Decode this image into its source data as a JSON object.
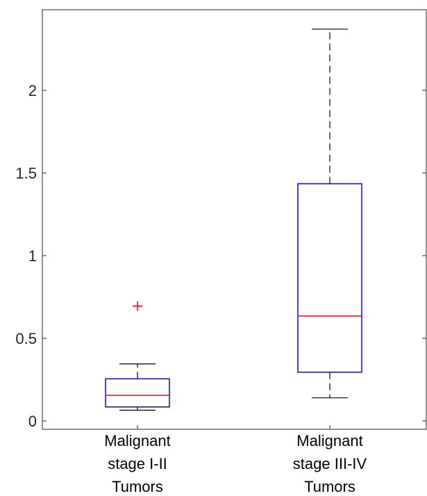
{
  "chart_data": {
    "type": "box",
    "title": "",
    "xlabel": "",
    "ylabel": "",
    "ylim": [
      -0.05,
      2.5
    ],
    "yticks": [
      0,
      0.5,
      1,
      1.5,
      2
    ],
    "ytick_labels": [
      "0",
      "0.5",
      "1",
      "1.5",
      "2"
    ],
    "grid": false,
    "categories": [
      [
        "Malignant",
        "stage I-II",
        "Tumors"
      ],
      [
        "Malignant",
        "stage III-IV",
        "Tumors"
      ]
    ],
    "boxes": [
      {
        "whisker_low": 0.065,
        "q1": 0.085,
        "median": 0.155,
        "q3": 0.255,
        "whisker_high": 0.345,
        "outliers": [
          0.695
        ]
      },
      {
        "whisker_low": 0.14,
        "q1": 0.295,
        "median": 0.635,
        "q3": 1.435,
        "whisker_high": 2.37,
        "outliers": []
      }
    ],
    "colors": {
      "box": "#0000ff",
      "median": "#ff0000",
      "whisker": "#000000",
      "outlier": "#ff0000",
      "axis": "#262626"
    }
  }
}
